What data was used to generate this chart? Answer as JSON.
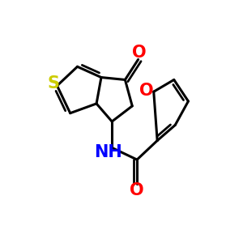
{
  "background": "#ffffff",
  "atom_colors": {
    "S": "#cccc00",
    "O": "#ff0000",
    "N": "#0000ff",
    "C": "#000000"
  },
  "bond_color": "#000000",
  "bond_width": 2.2,
  "font_size_atoms": 15,
  "font_size_nh": 15,
  "xlim": [
    0,
    10
  ],
  "ylim": [
    0,
    10
  ]
}
